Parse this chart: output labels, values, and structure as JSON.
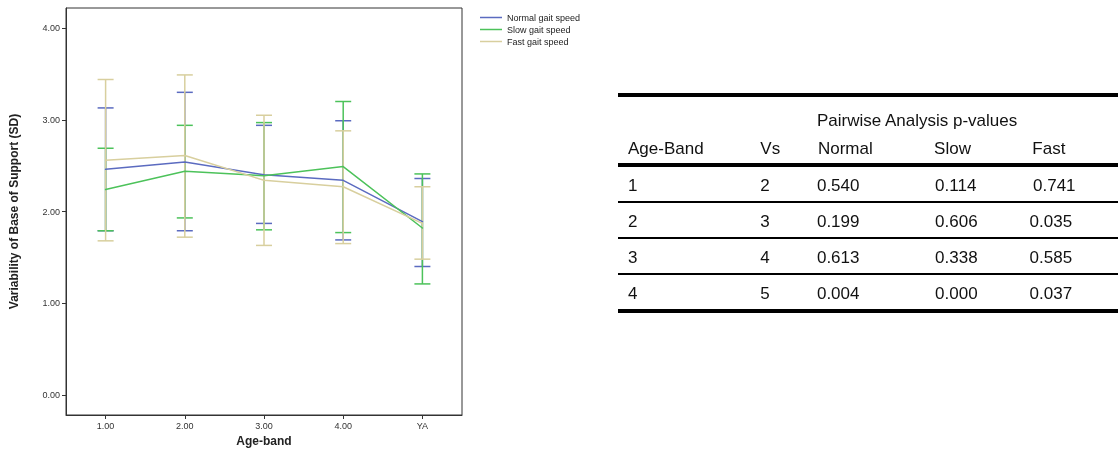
{
  "chart_data": [
    {
      "type": "line",
      "xlabel": "Age-band",
      "ylabel": "Variability of Base of Support (SD)",
      "categories": [
        "1.00",
        "2.00",
        "3.00",
        "4.00",
        "YA"
      ],
      "series": [
        {
          "name": "Normal gait speed",
          "color": "#5b6bc0",
          "values": [
            2.46,
            2.54,
            2.4,
            2.34,
            1.89
          ],
          "errors": [
            [
              1.79,
              3.13
            ],
            [
              1.79,
              3.3
            ],
            [
              1.87,
              2.94
            ],
            [
              1.69,
              2.99
            ],
            [
              1.4,
              2.36
            ]
          ]
        },
        {
          "name": "Slow gait speed",
          "color": "#4cc25a",
          "values": [
            2.24,
            2.44,
            2.39,
            2.49,
            1.82
          ],
          "errors": [
            [
              1.79,
              2.69
            ],
            [
              1.93,
              2.94
            ],
            [
              1.8,
              2.97
            ],
            [
              1.77,
              3.2
            ],
            [
              1.21,
              2.41
            ]
          ]
        },
        {
          "name": "Fast gait speed",
          "color": "#d8cf9e",
          "values": [
            2.56,
            2.61,
            2.34,
            2.27,
            1.87
          ],
          "errors": [
            [
              1.68,
              3.44
            ],
            [
              1.72,
              3.49
            ],
            [
              1.63,
              3.05
            ],
            [
              1.65,
              2.88
            ],
            [
              1.48,
              2.27
            ]
          ]
        }
      ],
      "ylim": [
        -0.22,
        4.22
      ],
      "yticks": [
        {
          "value": 0,
          "label": "0.00"
        },
        {
          "value": 1,
          "label": "1.00"
        },
        {
          "value": 2,
          "label": "2.00"
        },
        {
          "value": 3,
          "label": "3.00"
        },
        {
          "value": 4,
          "label": "4.00"
        }
      ],
      "grid": false,
      "legend": "top right",
      "marker": "none",
      "line_style": "solid"
    },
    {
      "type": "other",
      "title": "Pairwise Analysis p-values",
      "categories": [
        "Age-Band",
        "Vs",
        "Normal",
        "Slow",
        "Fast"
      ],
      "cell_labels": [
        [
          "1",
          "2",
          "0.540",
          "0.114",
          "0.741"
        ],
        [
          "2",
          "3",
          "0.199",
          "0.606",
          "0.035"
        ],
        [
          "3",
          "4",
          "0.613",
          "0.338",
          "0.585"
        ],
        [
          "4",
          "5",
          "0.004",
          "0.000",
          "0.037"
        ]
      ]
    }
  ]
}
